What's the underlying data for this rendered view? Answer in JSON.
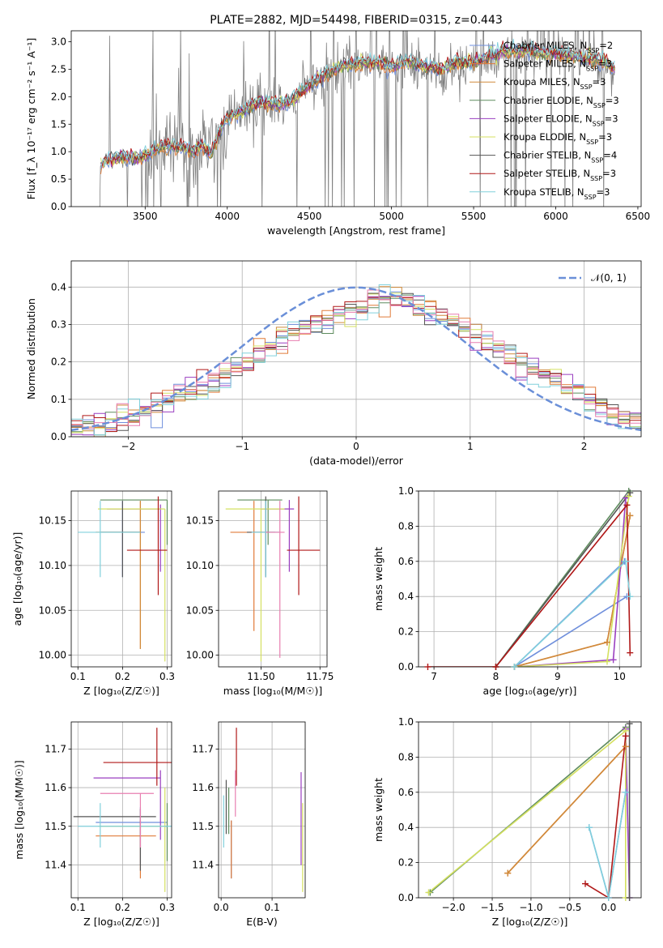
{
  "figure": {
    "title": "PLATE=2882, MJD=54498, FIBERID=0315, z=0.443"
  },
  "colors": {
    "Chabrier MILES": "#6f8fdc",
    "Salpeter MILES": "#e07b39",
    "Kroupa MILES": "#d08a3a",
    "Chabrier ELODIE": "#5e8c5e",
    "Salpeter ELODIE": "#9a3fc0",
    "Kroupa ELODIE": "#d4e060",
    "Chabrier STELIB": "#555555",
    "Salpeter STELIB": "#b01818",
    "Kroupa STELIB": "#80d0dc",
    "extra_pink": "#e87fb0",
    "data_gray": "#808080",
    "normal_curve": "#6a8fd8"
  },
  "chart_data": [
    {
      "id": "spectrum",
      "type": "line",
      "title": "PLATE=2882, MJD=54498, FIBERID=0315, z=0.443",
      "xlabel": "wavelength [Angstrom, rest frame]",
      "ylabel": "Flux [f_λ 10⁻¹⁷ erg cm⁻² s⁻¹ A⁻¹]",
      "xlim": [
        3050,
        6520
      ],
      "ylim": [
        0,
        3.2
      ],
      "xticks": [
        3500,
        4000,
        4500,
        5000,
        5500,
        6000,
        6500
      ],
      "yticks": [
        0.0,
        0.5,
        1.0,
        1.5,
        2.0,
        2.5,
        3.0
      ],
      "grid": false,
      "legend_position": "top-right",
      "legend": [
        {
          "name": "Chabrier MILES, N",
          "sub": "SSP",
          "suffix": "=2"
        },
        {
          "name": "Salpeter MILES, N",
          "sub": "SSP",
          "suffix": "=3"
        },
        {
          "name": "Kroupa MILES, N",
          "sub": "SSP",
          "suffix": "=3"
        },
        {
          "name": "Chabrier ELODIE, N",
          "sub": "SSP",
          "suffix": "=3"
        },
        {
          "name": "Salpeter ELODIE, N",
          "sub": "SSP",
          "suffix": "=3"
        },
        {
          "name": "Kroupa ELODIE, N",
          "sub": "SSP",
          "suffix": "=3"
        },
        {
          "name": "Chabrier STELIB, N",
          "sub": "SSP",
          "suffix": "=4"
        },
        {
          "name": "Salpeter STELIB, N",
          "sub": "SSP",
          "suffix": "=3"
        },
        {
          "name": "Kroupa STELIB, N",
          "sub": "SSP",
          "suffix": "=3"
        }
      ],
      "data_range": [
        3220,
        6360
      ],
      "model_shape": {
        "x": [
          3220,
          3250,
          3350,
          3450,
          3500,
          3600,
          3700,
          3800,
          3850,
          3900,
          3950,
          4000,
          4100,
          4200,
          4300,
          4400,
          4500,
          4600,
          4700,
          4800,
          4900,
          5000,
          5100,
          5200,
          5300,
          5400,
          5500,
          5600,
          5700,
          5800,
          5900,
          6000,
          6100,
          6200,
          6300,
          6360
        ],
        "y": [
          0.7,
          0.82,
          0.9,
          0.88,
          0.95,
          1.08,
          1.1,
          1.0,
          1.15,
          0.95,
          1.35,
          1.6,
          1.75,
          1.9,
          1.85,
          1.95,
          2.2,
          2.4,
          2.55,
          2.6,
          2.62,
          2.55,
          2.65,
          2.55,
          2.5,
          2.62,
          2.6,
          2.75,
          2.82,
          2.85,
          2.8,
          2.78,
          2.75,
          2.7,
          2.65,
          2.5
        ]
      }
    },
    {
      "id": "residuals",
      "type": "histogram",
      "xlabel": "(data-model)/error",
      "ylabel": "Normed distribution",
      "xlim": [
        -2.5,
        2.5
      ],
      "ylim": [
        0,
        0.47
      ],
      "xticks": [
        -2,
        -1,
        0,
        1,
        2
      ],
      "yticks": [
        0.0,
        0.1,
        0.2,
        0.3,
        0.4
      ],
      "grid": true,
      "legend_position": "top-right",
      "legend": [
        {
          "name": "𝒩(0, 1)"
        }
      ],
      "bin_width": 0.1,
      "base_shape": {
        "x": [
          -2.5,
          -2.0,
          -1.5,
          -1.0,
          -0.5,
          0.0,
          0.3,
          0.5,
          1.0,
          1.5,
          2.0,
          2.5
        ],
        "y": [
          0.02,
          0.05,
          0.11,
          0.19,
          0.29,
          0.34,
          0.38,
          0.36,
          0.28,
          0.19,
          0.1,
          0.04
        ]
      }
    },
    {
      "id": "age_vs_Z",
      "type": "errorbar",
      "xlabel": "Z [log₁₀(Z/Z☉)]",
      "ylabel": "age [log₁₀(age/yr)]",
      "xlim": [
        0.085,
        0.31
      ],
      "ylim": [
        9.987,
        10.183
      ],
      "xticks": [
        0.1,
        0.2,
        0.3
      ],
      "yticks": [
        10.0,
        10.05,
        10.1,
        10.15
      ],
      "grid": true,
      "points": [
        {
          "model": "Chabrier MILES",
          "x": 0.2,
          "y": 10.137,
          "xerr": [
            0.05,
            0.05
          ],
          "yerr": [
            0.05,
            0.035
          ]
        },
        {
          "model": "Salpeter MILES",
          "x": 0.24,
          "y": 10.137,
          "xerr": [
            0.1,
            0.0
          ],
          "yerr": [
            0.13,
            0.035
          ]
        },
        {
          "model": "Kroupa MILES",
          "x": 0.24,
          "y": 10.137,
          "xerr": [
            0.1,
            0.0
          ],
          "yerr": [
            0.13,
            0.035
          ]
        },
        {
          "model": "Chabrier ELODIE",
          "x": 0.3,
          "y": 10.173,
          "xerr": [
            0.15,
            0.0
          ],
          "yerr": [
            0.05,
            0.0
          ]
        },
        {
          "model": "Salpeter ELODIE",
          "x": 0.285,
          "y": 10.163,
          "xerr": [
            0.12,
            0.0
          ],
          "yerr": [
            0.07,
            0.005
          ]
        },
        {
          "model": "Kroupa ELODIE",
          "x": 0.295,
          "y": 10.163,
          "xerr": [
            0.15,
            0.0
          ],
          "yerr": [
            0.17,
            0.0
          ]
        },
        {
          "model": "Chabrier STELIB",
          "x": 0.2,
          "y": 10.137,
          "xerr": [
            0.05,
            0.04
          ],
          "yerr": [
            0.05,
            0.035
          ]
        },
        {
          "model": "Salpeter STELIB",
          "x": 0.28,
          "y": 10.117,
          "xerr": [
            0.07,
            0.02
          ],
          "yerr": [
            0.05,
            0.06
          ]
        },
        {
          "model": "Kroupa STELIB",
          "x": 0.15,
          "y": 10.137,
          "xerr": [
            0.05,
            0.09
          ],
          "yerr": [
            0.05,
            0.035
          ]
        }
      ]
    },
    {
      "id": "age_vs_mass",
      "type": "errorbar",
      "xlabel": "mass [log₁₀(M/M☉)]",
      "ylabel": "",
      "xlim": [
        11.32,
        11.78
      ],
      "ylim": [
        9.987,
        10.183
      ],
      "xticks": [
        11.5,
        11.75
      ],
      "yticks": [
        10.0,
        10.05,
        10.1,
        10.15
      ],
      "grid": true,
      "points": [
        {
          "model": "Chabrier MILES",
          "x": 11.52,
          "y": 10.137,
          "xerr": [
            0.06,
            0.06
          ],
          "yerr": [
            0.05,
            0.035
          ]
        },
        {
          "model": "Salpeter MILES",
          "x": 11.47,
          "y": 10.137,
          "xerr": [
            0.1,
            0.04
          ],
          "yerr": [
            0.11,
            0.035
          ]
        },
        {
          "model": "Chabrier ELODIE",
          "x": 11.53,
          "y": 10.173,
          "xerr": [
            0.13,
            0.06
          ],
          "yerr": [
            0.05,
            0.0
          ]
        },
        {
          "model": "Salpeter ELODIE",
          "x": 11.62,
          "y": 10.163,
          "xerr": [
            0.12,
            0.02
          ],
          "yerr": [
            0.07,
            0.01
          ]
        },
        {
          "model": "Kroupa ELODIE",
          "x": 11.5,
          "y": 10.163,
          "xerr": [
            0.15,
            0.1
          ],
          "yerr": [
            0.17,
            0.0
          ]
        },
        {
          "model": "Chabrier STELIB",
          "x": 11.52,
          "y": 10.137,
          "xerr": [
            0.08,
            0.04
          ],
          "yerr": [
            0.05,
            0.04
          ]
        },
        {
          "model": "Salpeter STELIB",
          "x": 11.66,
          "y": 10.117,
          "xerr": [
            0.05,
            0.09
          ],
          "yerr": [
            0.05,
            0.06
          ]
        },
        {
          "model": "Kroupa STELIB",
          "x": 11.52,
          "y": 10.137,
          "xerr": [
            0.06,
            0.06
          ],
          "yerr": [
            0.05,
            0.035
          ]
        },
        {
          "model": "extra_pink",
          "x": 11.58,
          "y": 10.137,
          "xerr": [
            0.06,
            0.02
          ],
          "yerr": [
            0.14,
            0.035
          ]
        }
      ]
    },
    {
      "id": "massweight_vs_age",
      "type": "line",
      "xlabel": "age [log₁₀(age/yr)]",
      "ylabel": "mass weight",
      "xlim": [
        6.75,
        10.35
      ],
      "ylim": [
        0,
        1.0
      ],
      "xticks": [
        7,
        8,
        9,
        10
      ],
      "yticks": [
        0.0,
        0.2,
        0.4,
        0.6,
        0.8,
        1.0
      ],
      "grid": true,
      "series": [
        {
          "model": "Chabrier MILES",
          "x": [
            10.08,
            8.3,
            10.12
          ],
          "y": [
            0.6,
            0.0,
            0.4
          ]
        },
        {
          "model": "Salpeter MILES",
          "x": [
            8.3,
            9.8,
            10.17
          ],
          "y": [
            0.0,
            0.14,
            0.86
          ]
        },
        {
          "model": "Kroupa MILES",
          "x": [
            8.3,
            9.8,
            10.17
          ],
          "y": [
            0.0,
            0.14,
            0.86
          ]
        },
        {
          "model": "Chabrier ELODIE",
          "x": [
            8.0,
            10.15
          ],
          "y": [
            0.0,
            1.0
          ]
        },
        {
          "model": "Salpeter ELODIE",
          "x": [
            8.3,
            9.9,
            10.1
          ],
          "y": [
            0.0,
            0.04,
            0.96
          ]
        },
        {
          "model": "Kroupa ELODIE",
          "x": [
            8.3,
            9.8,
            10.15
          ],
          "y": [
            0.0,
            0.03,
            0.97
          ]
        },
        {
          "model": "Chabrier STELIB",
          "x": [
            8.0,
            10.17
          ],
          "y": [
            0.0,
            0.99
          ]
        },
        {
          "model": "Salpeter STELIB",
          "x": [
            6.9,
            8.0,
            10.12,
            10.17
          ],
          "y": [
            0.0,
            0.0,
            0.92,
            0.08
          ]
        },
        {
          "model": "Kroupa STELIB",
          "x": [
            8.3,
            10.1,
            10.17
          ],
          "y": [
            0.0,
            0.6,
            0.4
          ]
        }
      ]
    },
    {
      "id": "mass_vs_Z",
      "type": "errorbar",
      "xlabel": "Z [log₁₀(Z/Z☉)]",
      "ylabel": "mass [log₁₀(M/M☉)]",
      "xlim": [
        0.085,
        0.31
      ],
      "ylim": [
        11.315,
        11.77
      ],
      "xticks": [
        0.1,
        0.2,
        0.3
      ],
      "yticks": [
        11.4,
        11.5,
        11.6,
        11.7
      ],
      "grid": true,
      "points": [
        {
          "model": "Chabrier MILES",
          "x": 0.24,
          "y": 11.51,
          "xerr": [
            0.1,
            0.06
          ],
          "yerr": [
            0.11,
            0.04
          ]
        },
        {
          "model": "Salpeter MILES",
          "x": 0.24,
          "y": 11.475,
          "xerr": [
            0.1,
            0.035
          ],
          "yerr": [
            0.11,
            0.04
          ]
        },
        {
          "model": "Chabrier ELODIE",
          "x": 0.3,
          "y": 11.5,
          "xerr": [
            0.15,
            0.0
          ],
          "yerr": [
            0.09,
            0.06
          ]
        },
        {
          "model": "Salpeter ELODIE",
          "x": 0.285,
          "y": 11.625,
          "xerr": [
            0.15,
            0.0
          ],
          "yerr": [
            0.16,
            0.02
          ]
        },
        {
          "model": "Kroupa ELODIE",
          "x": 0.295,
          "y": 11.5,
          "xerr": [
            0.15,
            0.0
          ],
          "yerr": [
            0.17,
            0.1
          ]
        },
        {
          "model": "Chabrier STELIB",
          "x": 0.24,
          "y": 11.525,
          "xerr": [
            0.15,
            0.035
          ],
          "yerr": [
            0.14,
            0.02
          ]
        },
        {
          "model": "Salpeter STELIB",
          "x": 0.277,
          "y": 11.665,
          "xerr": [
            0.12,
            0.05
          ],
          "yerr": [
            0.06,
            0.09
          ]
        },
        {
          "model": "Kroupa STELIB",
          "x": 0.15,
          "y": 11.5,
          "xerr": [
            0.05,
            0.16
          ],
          "yerr": [
            0.055,
            0.06
          ]
        },
        {
          "model": "extra_pink",
          "x": 0.24,
          "y": 11.585,
          "xerr": [
            0.09,
            0.03
          ],
          "yerr": [
            0.14,
            0.0
          ]
        }
      ]
    },
    {
      "id": "mass_vs_EBV",
      "type": "errorbar",
      "xlabel": "E(B-V)",
      "ylabel": "",
      "xlim": [
        -0.005,
        0.165
      ],
      "ylim": [
        11.315,
        11.77
      ],
      "xticks": [
        0.0,
        0.1
      ],
      "yticks": [
        11.4,
        11.5,
        11.6,
        11.7
      ],
      "grid": true,
      "points": [
        {
          "model": "Chabrier MILES",
          "x": 0.02,
          "y": 11.475,
          "xerr": [
            0,
            0
          ],
          "yerr": [
            0.11,
            0.04
          ]
        },
        {
          "model": "Salpeter MILES",
          "x": 0.02,
          "y": 11.475,
          "xerr": [
            0,
            0
          ],
          "yerr": [
            0.11,
            0.04
          ]
        },
        {
          "model": "Chabrier ELODIE",
          "x": 0.015,
          "y": 11.52,
          "xerr": [
            0,
            0
          ],
          "yerr": [
            0.04,
            0.08
          ]
        },
        {
          "model": "Salpeter ELODIE",
          "x": 0.157,
          "y": 11.56,
          "xerr": [
            0,
            0
          ],
          "yerr": [
            0.16,
            0.08
          ]
        },
        {
          "model": "Kroupa ELODIE",
          "x": 0.16,
          "y": 11.5,
          "xerr": [
            0,
            0
          ],
          "yerr": [
            0.17,
            0.06
          ]
        },
        {
          "model": "Chabrier STELIB",
          "x": 0.01,
          "y": 11.52,
          "xerr": [
            0,
            0
          ],
          "yerr": [
            0.04,
            0.1
          ]
        },
        {
          "model": "Salpeter STELIB",
          "x": 0.03,
          "y": 11.665,
          "xerr": [
            0,
            0
          ],
          "yerr": [
            0.06,
            0.09
          ]
        },
        {
          "model": "Kroupa STELIB",
          "x": 0.005,
          "y": 11.5,
          "xerr": [
            0,
            0
          ],
          "yerr": [
            0.055,
            0.08
          ]
        },
        {
          "model": "extra_pink",
          "x": 0.028,
          "y": 11.585,
          "xerr": [
            0,
            0
          ],
          "yerr": [
            0.06,
            0.06
          ]
        }
      ]
    },
    {
      "id": "massweight_vs_Z",
      "type": "line",
      "xlabel": "Z [log₁₀(Z/Z☉)]",
      "ylabel": "mass weight",
      "xlim": [
        -2.45,
        0.42
      ],
      "ylim": [
        0,
        1.0
      ],
      "xticks": [
        -2.0,
        -1.5,
        -1.0,
        -0.5,
        0.0
      ],
      "yticks": [
        0.0,
        0.2,
        0.4,
        0.6,
        0.8,
        1.0
      ],
      "grid": true,
      "series": [
        {
          "model": "Chabrier MILES",
          "x": [
            -0.25,
            0.0,
            0.22
          ],
          "y": [
            0.4,
            0.0,
            0.6
          ]
        },
        {
          "model": "Salpeter MILES",
          "x": [
            -1.3,
            0.22
          ],
          "y": [
            0.14,
            0.86
          ]
        },
        {
          "model": "Kroupa MILES",
          "x": [
            -1.3,
            0.22
          ],
          "y": [
            0.14,
            0.86
          ]
        },
        {
          "model": "Chabrier ELODIE",
          "x": [
            -2.3,
            0.22
          ],
          "y": [
            0.03,
            0.97
          ]
        },
        {
          "model": "Salpeter ELODIE",
          "x": [
            0.22,
            0.27
          ],
          "y": [
            0.96,
            0.0
          ]
        },
        {
          "model": "Kroupa ELODIE",
          "x": [
            -2.32,
            0.22,
            0.22
          ],
          "y": [
            0.03,
            0.95,
            0.0
          ]
        },
        {
          "model": "Chabrier STELIB",
          "x": [
            0.27,
            0.27
          ],
          "y": [
            0.0,
            0.99
          ]
        },
        {
          "model": "Salpeter STELIB",
          "x": [
            -0.3,
            0.0,
            0.22
          ],
          "y": [
            0.08,
            0.0,
            0.92
          ]
        },
        {
          "model": "Kroupa STELIB",
          "x": [
            -0.25,
            0.0,
            0.22
          ],
          "y": [
            0.4,
            0.0,
            0.6
          ]
        }
      ]
    }
  ]
}
